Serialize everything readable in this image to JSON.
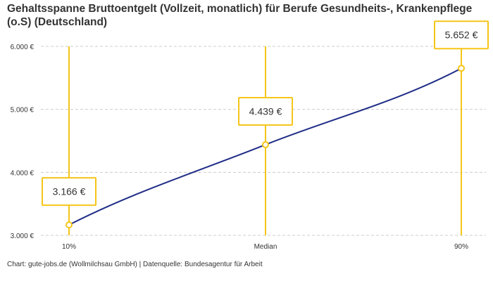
{
  "title": "Gehaltsspanne Bruttoentgelt (Vollzeit, monatlich) für Berufe Gesundheits-, Krankenpflege (o.S) (Deutschland)",
  "source": "Chart: gute-jobs.de (Wollmilchsau GmbH) | Datenquelle: Bundesagentur für Arbeit",
  "chart_data": {
    "type": "line",
    "categories": [
      "10%",
      "Median",
      "90%"
    ],
    "values": [
      3166,
      4439,
      5652
    ],
    "value_labels": [
      "3.166 €",
      "4.439 €",
      "5.652 €"
    ],
    "yticks": [
      3000,
      4000,
      5000,
      6000
    ],
    "ytick_labels": [
      "3.000 €",
      "4.000 €",
      "5.000 €",
      "6.000 €"
    ],
    "ylim": [
      3000,
      6000
    ],
    "grid": true,
    "colors": {
      "line": "#1f2d87",
      "marker": "#f5c518",
      "grid": "#cccccc"
    }
  }
}
